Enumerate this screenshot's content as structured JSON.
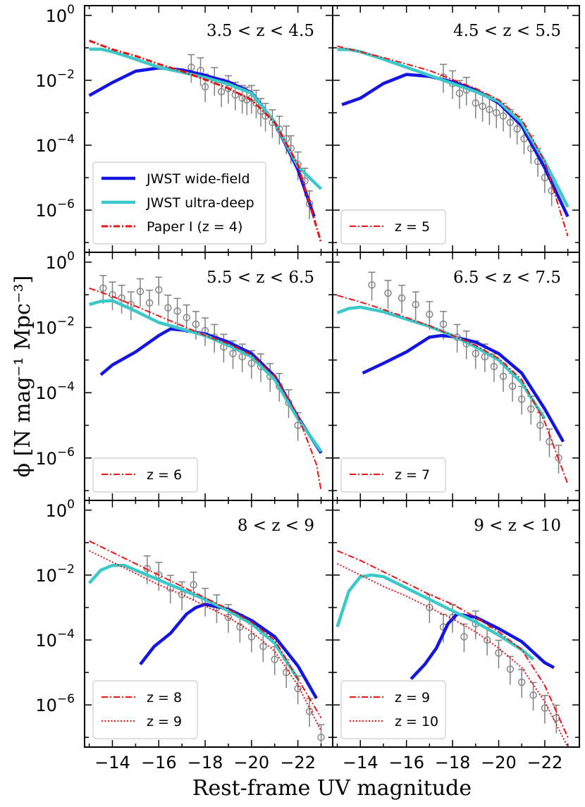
{
  "chart_data": {
    "type": "line",
    "xlabel": "Rest-frame UV magnitude",
    "ylabel": "ϕ  [N mag⁻¹ Mpc⁻³]",
    "xlim": [
      -12.8,
      -23.5
    ],
    "ylim_log10": [
      -7.3,
      0.3
    ],
    "x_ticks": [
      -14,
      -16,
      -18,
      -20,
      -22
    ],
    "x_tick_labels": [
      "−14",
      "−16",
      "−18",
      "−20",
      "−22"
    ],
    "y_ticks_log10": [
      0,
      -2,
      -4,
      -6
    ],
    "y_tick_labels": [
      "10^0",
      "10^-2",
      "10^-4",
      "10^-6"
    ],
    "scale": "log",
    "colors": {
      "wide": "#1515e0",
      "ultra": "#3cc8c8",
      "paper": "#ee1111",
      "obs": "#808080"
    },
    "panels": [
      {
        "title": "3.5 < z < 4.5",
        "legend": [
          "JWST wide-field",
          "JWST ultra-deep",
          "Paper I (z = 4)"
        ],
        "legend_position": "lower-left",
        "series": [
          {
            "name": "JWST wide-field",
            "x": [
              -13,
              -14,
              -15,
              -16,
              -17,
              -18,
              -19,
              -20,
              -21,
              -22,
              -22.7
            ],
            "y": [
              -2.47,
              -2.07,
              -1.72,
              -1.62,
              -1.68,
              -1.85,
              -2.05,
              -2.38,
              -3.3,
              -4.75,
              -6.2
            ]
          },
          {
            "name": "JWST ultra-deep",
            "x": [
              -13,
              -13.5,
              -14,
              -15,
              -16,
              -17,
              -18,
              -19,
              -20,
              -21,
              -22,
              -23
            ],
            "y": [
              -1.04,
              -1.04,
              -1.12,
              -1.35,
              -1.6,
              -1.75,
              -1.92,
              -2.12,
              -2.4,
              -3.3,
              -4.65,
              -5.35
            ]
          },
          {
            "name": "Paper I (z = 4)",
            "x": [
              -13,
              -14,
              -15,
              -16,
              -17,
              -18,
              -19,
              -20,
              -21,
              -22,
              -23
            ],
            "y": [
              -0.78,
              -1.05,
              -1.25,
              -1.5,
              -1.72,
              -1.98,
              -2.25,
              -2.6,
              -3.3,
              -4.6,
              -7.0
            ]
          }
        ],
        "observations": {
          "x": [
            -17.4,
            -17.8,
            -18.0,
            -18.4,
            -18.7,
            -19.0,
            -19.3,
            -19.6,
            -19.8,
            -20.0,
            -20.2,
            -20.4,
            -20.6,
            -20.9,
            -21.2,
            -21.5,
            -21.7,
            -22.0,
            -22.3,
            -22.5
          ],
          "y": [
            -1.6,
            -1.7,
            -2.2,
            -2.0,
            -2.35,
            -2.25,
            -2.45,
            -2.55,
            -2.6,
            -2.55,
            -2.7,
            -2.95,
            -3.1,
            -3.3,
            -3.5,
            -3.8,
            -4.1,
            -4.6,
            -5.1,
            -5.8
          ]
        }
      },
      {
        "title": "4.5 < z < 5.5",
        "legend": [
          "z = 5"
        ],
        "legend_position": "lower-left",
        "series": [
          {
            "name": "JWST wide-field",
            "x": [
              -13.2,
              -14,
              -15,
              -16,
              -17,
              -18,
              -19,
              -20,
              -21,
              -22,
              -23
            ],
            "y": [
              -2.75,
              -2.55,
              -2.1,
              -1.82,
              -1.88,
              -2.05,
              -2.3,
              -2.7,
              -3.4,
              -4.7,
              -6.2
            ]
          },
          {
            "name": "JWST ultra-deep",
            "x": [
              -13,
              -13.5,
              -14,
              -15,
              -16,
              -17,
              -18,
              -19,
              -20,
              -21,
              -22,
              -23
            ],
            "y": [
              -1.05,
              -1.05,
              -1.12,
              -1.35,
              -1.6,
              -1.85,
              -2.1,
              -2.35,
              -2.65,
              -3.3,
              -4.5,
              -5.9
            ]
          },
          {
            "name": "z = 5",
            "x": [
              -13,
              -14,
              -15,
              -16,
              -17,
              -18,
              -19,
              -20,
              -21,
              -22,
              -23
            ],
            "y": [
              -0.95,
              -1.12,
              -1.3,
              -1.5,
              -1.7,
              -1.98,
              -2.25,
              -2.6,
              -3.2,
              -4.5,
              -6.8
            ]
          }
        ],
        "observations": {
          "x": [
            -17.6,
            -18.0,
            -18.3,
            -18.6,
            -19.0,
            -19.3,
            -19.6,
            -19.9,
            -20.2,
            -20.5,
            -20.8,
            -21.1,
            -21.4,
            -21.7,
            -22.0,
            -22.3
          ],
          "y": [
            -1.9,
            -2.1,
            -2.4,
            -2.3,
            -2.7,
            -2.8,
            -2.9,
            -3.0,
            -3.1,
            -3.3,
            -3.5,
            -3.8,
            -4.1,
            -4.5,
            -5.0,
            -5.4
          ]
        }
      },
      {
        "title": "5.5 < z < 6.5",
        "legend": [
          "z = 6"
        ],
        "legend_position": "lower-left",
        "series": [
          {
            "name": "JWST wide-field",
            "x": [
              -13.5,
              -14,
              -15,
              -16,
              -16.5,
              -17,
              -18,
              -19,
              -20,
              -21,
              -22,
              -23
            ],
            "y": [
              -3.45,
              -3.15,
              -2.75,
              -2.25,
              -2.05,
              -2.08,
              -2.2,
              -2.45,
              -2.8,
              -3.5,
              -4.75,
              -5.85
            ]
          },
          {
            "name": "JWST ultra-deep",
            "x": [
              -13,
              -13.5,
              -14,
              -15,
              -16,
              -17,
              -18,
              -19,
              -20,
              -21,
              -22,
              -23
            ],
            "y": [
              -1.3,
              -1.2,
              -1.18,
              -1.5,
              -1.85,
              -2.05,
              -2.25,
              -2.55,
              -2.9,
              -3.6,
              -4.8,
              -5.8
            ]
          },
          {
            "name": "z = 6",
            "x": [
              -13,
              -14,
              -15,
              -16,
              -17,
              -18,
              -19,
              -20,
              -21,
              -22,
              -22.8,
              -23
            ],
            "y": [
              -0.8,
              -1.05,
              -1.35,
              -1.65,
              -1.95,
              -2.25,
              -2.5,
              -2.85,
              -3.5,
              -4.7,
              -6.2,
              -7.0
            ]
          }
        ],
        "observations": {
          "x": [
            -13.6,
            -14.0,
            -14.4,
            -14.8,
            -15.2,
            -15.6,
            -16.0,
            -16.4,
            -16.8,
            -17.2,
            -17.6,
            -18.0,
            -18.4,
            -18.8,
            -19.2,
            -19.6,
            -20.0,
            -20.4,
            -20.8,
            -21.2,
            -21.6,
            -22.0
          ],
          "y": [
            -0.8,
            -1.0,
            -1.1,
            -1.3,
            -0.9,
            -1.25,
            -0.85,
            -1.4,
            -1.5,
            -1.7,
            -1.9,
            -2.1,
            -2.3,
            -2.6,
            -2.8,
            -2.9,
            -3.1,
            -3.2,
            -3.5,
            -3.8,
            -4.3,
            -5.0
          ]
        }
      },
      {
        "title": "6.5 < z < 7.5",
        "legend": [
          "z = 7"
        ],
        "legend_position": "lower-left",
        "series": [
          {
            "name": "JWST wide-field",
            "x": [
              -14.1,
              -15,
              -16,
              -17,
              -17.5,
              -18,
              -19,
              -20,
              -21,
              -22,
              -22.8
            ],
            "y": [
              -3.4,
              -3.1,
              -2.75,
              -2.3,
              -2.25,
              -2.28,
              -2.45,
              -2.8,
              -3.4,
              -4.5,
              -5.5
            ]
          },
          {
            "name": "JWST ultra-deep",
            "x": [
              -13,
              -13.5,
              -14,
              -15,
              -16,
              -17,
              -18,
              -19,
              -20,
              -21,
              -22
            ],
            "y": [
              -1.55,
              -1.42,
              -1.38,
              -1.52,
              -1.75,
              -1.97,
              -2.25,
              -2.6,
              -3.0,
              -3.7,
              -4.8
            ]
          },
          {
            "name": "z = 7",
            "x": [
              -13,
              -14,
              -15,
              -16,
              -17,
              -18,
              -19,
              -20,
              -21,
              -22,
              -23
            ],
            "y": [
              -1.02,
              -1.22,
              -1.45,
              -1.7,
              -1.95,
              -2.25,
              -2.55,
              -2.95,
              -3.6,
              -4.9,
              -6.8
            ]
          }
        ],
        "observations": {
          "x": [
            -14.5,
            -15.2,
            -15.8,
            -16.4,
            -17.0,
            -17.6,
            -18.2,
            -18.6,
            -19.0,
            -19.4,
            -19.8,
            -20.2,
            -20.6,
            -21.0,
            -21.4,
            -21.8,
            -22.2,
            -22.6
          ],
          "y": [
            -0.7,
            -0.95,
            -1.1,
            -1.3,
            -1.6,
            -1.9,
            -2.3,
            -2.5,
            -2.8,
            -2.9,
            -3.2,
            -3.5,
            -3.8,
            -4.2,
            -4.5,
            -5.0,
            -5.5,
            -6.0
          ]
        }
      },
      {
        "title": "8 < z < 9",
        "legend": [
          "z = 8",
          "z = 9"
        ],
        "legend_position": "lower-left",
        "series": [
          {
            "name": "JWST wide-field",
            "x": [
              -15.2,
              -15.8,
              -16.5,
              -17.2,
              -17.6,
              -18,
              -19,
              -20,
              -21,
              -22,
              -22.8
            ],
            "y": [
              -4.75,
              -4.2,
              -3.8,
              -3.2,
              -3.0,
              -2.9,
              -3.05,
              -3.4,
              -3.9,
              -4.8,
              -5.8
            ]
          },
          {
            "name": "JWST ultra-deep",
            "x": [
              -13,
              -13.5,
              -14,
              -14.5,
              -15,
              -16,
              -17,
              -18,
              -19,
              -20,
              -21,
              -22
            ],
            "y": [
              -2.25,
              -1.85,
              -1.7,
              -1.7,
              -1.85,
              -2.15,
              -2.45,
              -2.75,
              -3.1,
              -3.5,
              -4.1,
              -5.2
            ]
          },
          {
            "name": "z = 8",
            "x": [
              -13,
              -14,
              -15,
              -16,
              -17,
              -18,
              -19,
              -20,
              -21,
              -22,
              -23
            ],
            "y": [
              -0.95,
              -1.3,
              -1.65,
              -2.0,
              -2.35,
              -2.7,
              -3.05,
              -3.45,
              -4.0,
              -5.2,
              -6.4
            ]
          },
          {
            "name": "z = 9",
            "x": [
              -13,
              -14,
              -15,
              -16,
              -17,
              -18,
              -19,
              -20,
              -21,
              -22,
              -23
            ],
            "y": [
              -1.25,
              -1.6,
              -1.95,
              -2.3,
              -2.6,
              -2.95,
              -3.3,
              -3.75,
              -4.35,
              -5.4,
              -6.8
            ]
          }
        ],
        "observations": {
          "x": [
            -15.5,
            -16.0,
            -16.5,
            -17.0,
            -17.5,
            -18.0,
            -18.5,
            -19.0,
            -19.5,
            -20.0,
            -20.5,
            -21.0,
            -21.5,
            -22.0,
            -22.5,
            -23.0
          ],
          "y": [
            -1.8,
            -2.0,
            -2.4,
            -2.6,
            -2.3,
            -2.8,
            -3.0,
            -3.3,
            -3.6,
            -3.9,
            -4.2,
            -4.6,
            -5.0,
            -5.5,
            -6.2,
            -7.0
          ]
        }
      },
      {
        "title": "9 < z < 10",
        "legend": [
          "z = 9",
          "z = 10"
        ],
        "legend_position": "lower-left",
        "series": [
          {
            "name": "JWST wide-field",
            "x": [
              -16.2,
              -16.8,
              -17.3,
              -17.8,
              -18.2,
              -19,
              -20,
              -21,
              -22,
              -22.4
            ],
            "y": [
              -5.2,
              -4.75,
              -4.25,
              -3.5,
              -3.2,
              -3.3,
              -3.65,
              -4.05,
              -4.7,
              -4.85
            ]
          },
          {
            "name": "JWST ultra-deep",
            "x": [
              -13,
              -13.5,
              -14,
              -14.5,
              -15,
              -16,
              -17,
              -18,
              -19,
              -20,
              -21,
              -21.5
            ],
            "y": [
              -3.6,
              -2.5,
              -2.05,
              -2.0,
              -2.05,
              -2.4,
              -2.75,
              -3.1,
              -3.45,
              -3.85,
              -4.3,
              -4.6
            ]
          },
          {
            "name": "z = 9",
            "x": [
              -13,
              -14,
              -15,
              -16,
              -17,
              -18,
              -19,
              -20,
              -21,
              -22,
              -23
            ],
            "y": [
              -1.25,
              -1.55,
              -1.9,
              -2.25,
              -2.6,
              -2.9,
              -3.3,
              -3.75,
              -4.3,
              -5.4,
              -7.0
            ]
          },
          {
            "name": "z = 10",
            "x": [
              -13,
              -14,
              -15,
              -16,
              -17,
              -18,
              -19,
              -20,
              -21,
              -22,
              -23
            ],
            "y": [
              -1.65,
              -2.0,
              -2.35,
              -2.65,
              -3.0,
              -3.35,
              -3.75,
              -4.25,
              -4.85,
              -5.9,
              -7.3
            ]
          }
        ],
        "observations": {
          "x": [
            -17.0,
            -17.6,
            -18.0,
            -18.5,
            -19.0,
            -19.5,
            -20.0,
            -20.5,
            -21.0,
            -21.5,
            -22.0,
            -22.5
          ],
          "y": [
            -3.0,
            -3.6,
            -3.3,
            -3.9,
            -3.5,
            -4.0,
            -4.4,
            -4.9,
            -5.3,
            -5.7,
            -6.1,
            -6.4
          ]
        }
      }
    ]
  }
}
